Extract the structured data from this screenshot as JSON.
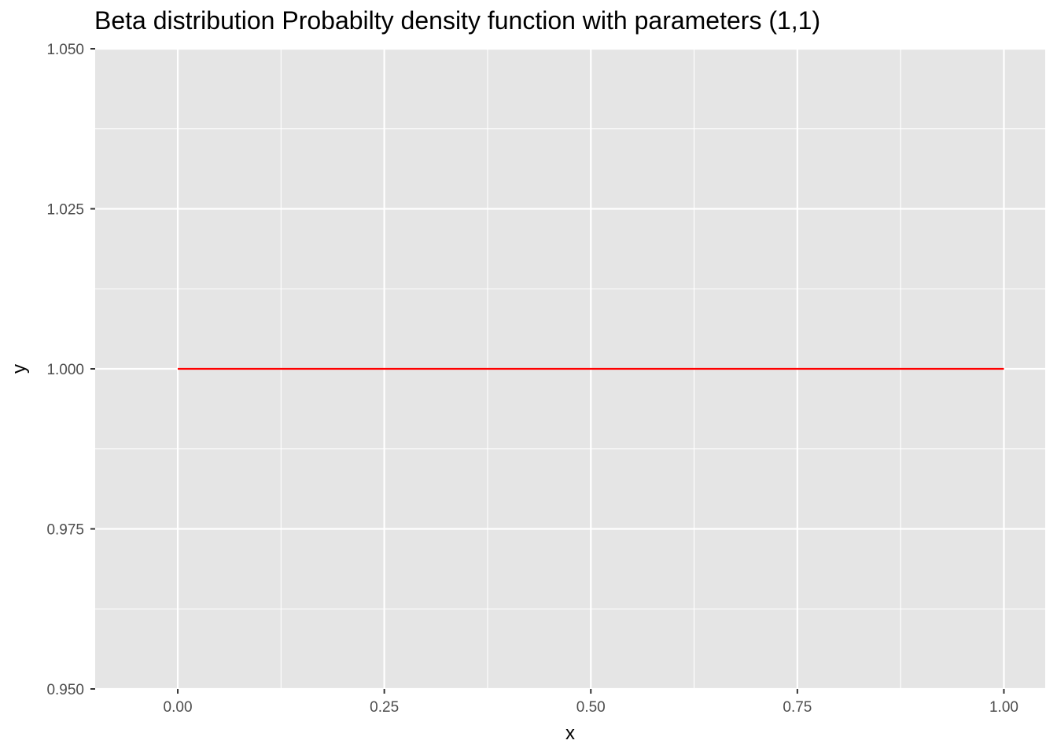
{
  "chart_data": {
    "type": "line",
    "title": "Beta distribution Probabilty density function with parameters (1,1)",
    "xlabel": "x",
    "ylabel": "y",
    "xlim": [
      -0.1,
      1.05
    ],
    "ylim": [
      0.95,
      1.05
    ],
    "x_ticks": [
      0.0,
      0.25,
      0.5,
      0.75,
      1.0
    ],
    "x_tick_labels": [
      "0.00",
      "0.25",
      "0.50",
      "0.75",
      "1.00"
    ],
    "y_ticks": [
      0.95,
      0.975,
      1.0,
      1.025,
      1.05
    ],
    "y_tick_labels": [
      "0.950",
      "0.975",
      "1.000",
      "1.025",
      "1.050"
    ],
    "grid": true,
    "series": [
      {
        "color": "#ff0000",
        "x": [
          0.0,
          0.25,
          0.5,
          0.75,
          1.0
        ],
        "y": [
          1.0,
          1.0,
          1.0,
          1.0,
          1.0
        ]
      }
    ],
    "panel_background": "#e5e5e5",
    "grid_color": "#ffffff"
  }
}
